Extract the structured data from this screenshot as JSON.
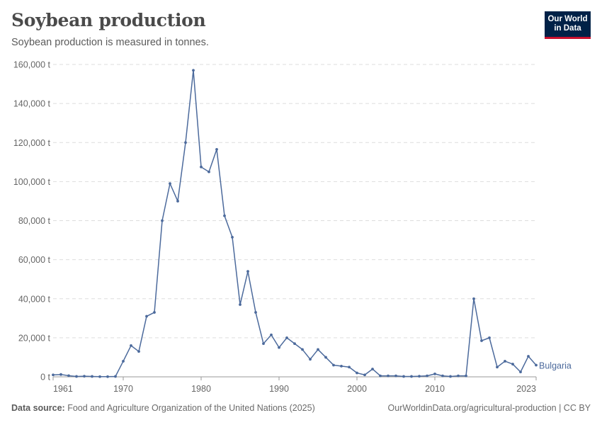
{
  "header": {
    "title": "Soybean production",
    "subtitle": "Soybean production is measured in tonnes.",
    "logo_line1": "Our World",
    "logo_line2": "in Data"
  },
  "footer": {
    "source_label": "Data source:",
    "source_text": "Food and Agriculture Organization of the United Nations (2025)",
    "url_text": "OurWorldinData.org/agricultural-production | CC BY"
  },
  "colors": {
    "series": "#4c6a9c",
    "grid": "#dddddd",
    "axis_text": "#666666",
    "logo_bg": "#002147",
    "logo_accent": "#c8102e"
  },
  "chart_data": {
    "type": "line",
    "title": "Soybean production",
    "subtitle": "Soybean production is measured in tonnes.",
    "xlabel": "",
    "ylabel": "",
    "xlim": [
      1961,
      2023
    ],
    "ylim": [
      0,
      160000
    ],
    "y_ticks": [
      0,
      20000,
      40000,
      60000,
      80000,
      100000,
      120000,
      140000,
      160000
    ],
    "y_tick_labels": [
      "0 t",
      "20,000 t",
      "40,000 t",
      "60,000 t",
      "80,000 t",
      "100,000 t",
      "120,000 t",
      "140,000 t",
      "160,000 t"
    ],
    "x_ticks": [
      1961,
      1970,
      1980,
      1990,
      2000,
      2010,
      2023
    ],
    "x_tick_labels": [
      "1961",
      "1970",
      "1980",
      "1990",
      "2000",
      "2010",
      "2023"
    ],
    "grid": "horizontal dashed",
    "legend": "end-of-line label",
    "series": [
      {
        "name": "Bulgaria",
        "x": [
          1961,
          1962,
          1963,
          1964,
          1965,
          1966,
          1967,
          1968,
          1969,
          1970,
          1971,
          1972,
          1973,
          1974,
          1975,
          1976,
          1977,
          1978,
          1979,
          1980,
          1981,
          1982,
          1983,
          1984,
          1985,
          1986,
          1987,
          1988,
          1989,
          1990,
          1991,
          1992,
          1993,
          1994,
          1995,
          1996,
          1997,
          1998,
          1999,
          2000,
          2001,
          2002,
          2003,
          2004,
          2005,
          2006,
          2007,
          2008,
          2009,
          2010,
          2011,
          2012,
          2013,
          2014,
          2015,
          2016,
          2017,
          2018,
          2019,
          2020,
          2021,
          2022,
          2023
        ],
        "y": [
          1000,
          1200,
          600,
          200,
          300,
          200,
          100,
          100,
          200,
          8000,
          16000,
          13000,
          31000,
          33000,
          80000,
          99000,
          90000,
          120000,
          157000,
          107500,
          105000,
          116500,
          82500,
          71500,
          37000,
          54000,
          33000,
          17000,
          21500,
          15000,
          20000,
          17000,
          14000,
          9000,
          14000,
          10000,
          6000,
          5500,
          5000,
          2000,
          1000,
          4000,
          500,
          500,
          500,
          200,
          200,
          300,
          500,
          1500,
          500,
          200,
          500,
          500,
          40000,
          18500,
          20000,
          5000,
          8000,
          6500,
          2500,
          10500,
          6000
        ]
      }
    ]
  }
}
